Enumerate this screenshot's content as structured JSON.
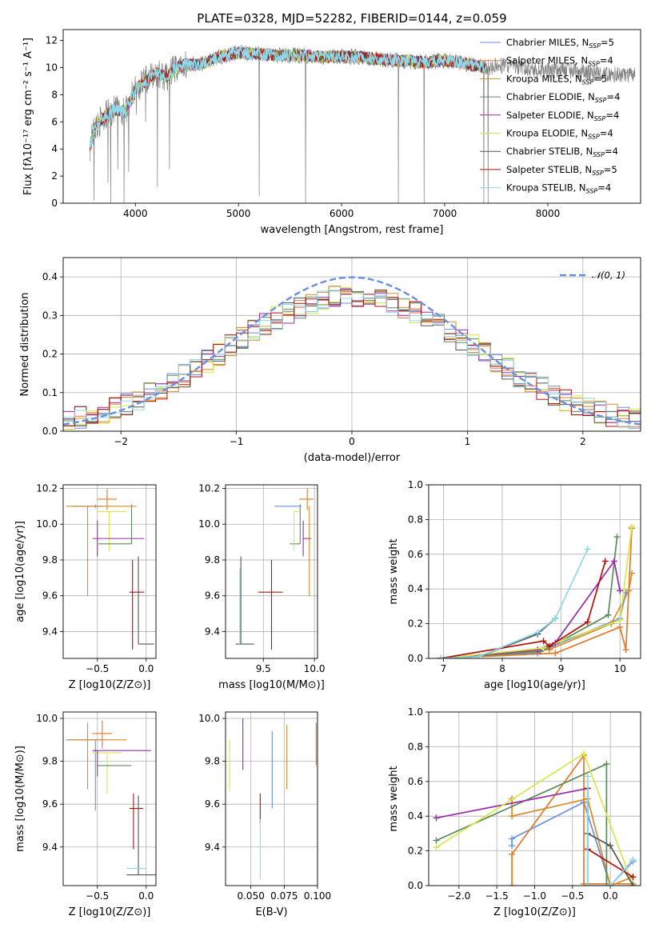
{
  "figure_title": "PLATE=0328, MJD=52282, FIBERID=0144, z=0.059",
  "colors": {
    "Chabrier MILES": "#6a8fe0",
    "Salpeter MILES": "#e07a2a",
    "Kroupa MILES": "#d98a2a",
    "Chabrier ELODIE": "#5a8a5a",
    "Salpeter ELODIE": "#9a2aa8",
    "Kroupa ELODIE": "#d6e84a",
    "Chabrier STELIB": "#555555",
    "Salpeter STELIB": "#b01010",
    "Kroupa STELIB": "#8fd8e8",
    "data": "#808080"
  },
  "chart_data": [
    {
      "id": "spectrum",
      "type": "line",
      "title": "PLATE=0328, MJD=52282, FIBERID=0144, z=0.059",
      "xlabel": "wavelength [Angstrom, rest frame]",
      "ylabel": "Flux [fλ10⁻¹⁷ erg cm⁻² s⁻¹ A⁻¹]",
      "xlim": [
        3300,
        8900
      ],
      "ylim": [
        0,
        12.8
      ],
      "xticks": [
        4000,
        5000,
        6000,
        7000,
        8000
      ],
      "yticks": [
        0,
        2,
        4,
        6,
        8,
        10,
        12
      ],
      "grid": false,
      "legend_position": "top-right",
      "legend": [
        "Chabrier MILES, N_SSP=5",
        "Salpeter MILES, N_SSP=4",
        "Kroupa MILES, N_SSP=5",
        "Chabrier ELODIE, N_SSP=4",
        "Salpeter ELODIE, N_SSP=4",
        "Kroupa ELODIE, N_SSP=4",
        "Chabrier STELIB, N_SSP=4",
        "Salpeter STELIB, N_SSP=5",
        "Kroupa STELIB, N_SSP=4"
      ],
      "legend_display": [
        [
          "Chabrier MILES, N",
          "SSP",
          "=5"
        ],
        [
          "Salpeter MILES, N",
          "SSP",
          "=4"
        ],
        [
          "Kroupa MILES, N",
          "SSP",
          "=5"
        ],
        [
          "Chabrier ELODIE, N",
          "SSP",
          "=4"
        ],
        [
          "Salpeter ELODIE, N",
          "SSP",
          "=4"
        ],
        [
          "Kroupa ELODIE, N",
          "SSP",
          "=4"
        ],
        [
          "Chabrier STELIB, N",
          "SSP",
          "=4"
        ],
        [
          "Salpeter STELIB, N",
          "SSP",
          "=5"
        ],
        [
          "Kroupa STELIB, N",
          "SSP",
          "=4"
        ]
      ],
      "continuum_x": [
        3560,
        3600,
        3700,
        3800,
        3900,
        4000,
        4100,
        4200,
        4300,
        4400,
        4500,
        4600,
        4700,
        4800,
        4900,
        5000,
        5200,
        5400,
        5600,
        5800,
        6000,
        6200,
        6400,
        6600,
        6800,
        7000,
        7200,
        7400,
        7600,
        7800,
        8000,
        8200,
        8400,
        8600,
        8800
      ],
      "continuum_y": [
        4.2,
        5.5,
        6.4,
        6.9,
        6.8,
        8.4,
        9.0,
        9.6,
        9.3,
        10.0,
        10.3,
        10.2,
        10.4,
        10.8,
        10.9,
        11.1,
        11.0,
        10.9,
        10.9,
        10.8,
        10.8,
        10.8,
        10.6,
        10.5,
        10.4,
        10.5,
        10.3,
        10.0,
        10.2,
        9.9,
        9.8,
        9.8,
        9.6,
        9.5,
        9.4
      ],
      "absorption_lines": [
        {
          "x": 3600,
          "y": 0.2
        },
        {
          "x": 3735,
          "y": 1.5
        },
        {
          "x": 3760,
          "y": 0.0
        },
        {
          "x": 3830,
          "y": 2.5
        },
        {
          "x": 3890,
          "y": 0.0
        },
        {
          "x": 3935,
          "y": 2.3
        },
        {
          "x": 4010,
          "y": 6.5
        },
        {
          "x": 4101,
          "y": 6.0
        },
        {
          "x": 4215,
          "y": 1.2
        },
        {
          "x": 4330,
          "y": 2.5
        },
        {
          "x": 5200,
          "y": 0.5
        },
        {
          "x": 5650,
          "y": 0.0
        },
        {
          "x": 6550,
          "y": 0.0
        },
        {
          "x": 6800,
          "y": 0.0
        },
        {
          "x": 7380,
          "y": 0.0
        },
        {
          "x": 7420,
          "y": 0.0
        }
      ]
    },
    {
      "id": "residuals",
      "type": "histogram",
      "xlabel": "(data-model)/error",
      "ylabel": "Normed distribution",
      "xlim": [
        -2.5,
        2.5
      ],
      "ylim": [
        0,
        0.45
      ],
      "xticks": [
        -2,
        -1,
        0,
        1,
        2
      ],
      "yticks": [
        0.0,
        0.1,
        0.2,
        0.3,
        0.4
      ],
      "grid": true,
      "legend_position": "top-right",
      "legend": [
        "𝒩(0, 1)"
      ],
      "bin_width": 0.1,
      "bin_start": -2.5,
      "bins": 50
    },
    {
      "id": "age-vs-Z",
      "type": "errorbar",
      "xlabel": "Z [log10(Z/Z⊙)]",
      "ylabel": "age [log10(age/yr)]",
      "xlim": [
        -0.85,
        0.1
      ],
      "ylim": [
        9.25,
        10.22
      ],
      "xticks": [
        -0.5,
        0.0
      ],
      "yticks": [
        9.4,
        9.6,
        9.8,
        10.0,
        10.2
      ],
      "grid": true,
      "points": [
        {
          "model": "Salpeter MILES",
          "x": -0.4,
          "y": 10.14,
          "xerr": [
            0.1,
            0.1
          ],
          "yerr": [
            0.06,
            0.06
          ]
        },
        {
          "model": "Chabrier MILES",
          "x": -0.52,
          "y": 10.1,
          "xerr": [
            0.23,
            0.08
          ],
          "yerr": [
            0.01,
            0.01
          ]
        },
        {
          "model": "Kroupa ELODIE",
          "x": -0.38,
          "y": 10.07,
          "xerr": [
            0.12,
            0.18
          ],
          "yerr": [
            0.22,
            0.0
          ]
        },
        {
          "model": "Salpeter ELODIE",
          "x": -0.5,
          "y": 9.92,
          "xerr": [
            0.05,
            0.48
          ],
          "yerr": [
            0.1,
            0.1
          ]
        },
        {
          "model": "Chabrier ELODIE",
          "x": -0.15,
          "y": 9.89,
          "xerr": [
            0.34,
            0.0
          ],
          "yerr": [
            0.0,
            0.22
          ]
        },
        {
          "model": "Salpeter STELIB",
          "x": -0.14,
          "y": 9.62,
          "xerr": [
            0.03,
            0.12
          ],
          "yerr": [
            0.32,
            0.18
          ]
        },
        {
          "model": "Chabrier STELIB",
          "x": -0.08,
          "y": 9.33,
          "xerr": [
            0.0,
            0.16
          ],
          "yerr": [
            0.0,
            0.49
          ]
        },
        {
          "model": "Kroupa MILES",
          "x": -0.6,
          "y": 10.1,
          "xerr": [
            0.22,
            0.5
          ],
          "yerr": [
            0.5,
            0.0
          ]
        }
      ]
    },
    {
      "id": "age-vs-mass",
      "type": "errorbar",
      "xlabel": "mass [log10(M/M⊙)]",
      "ylabel": "",
      "xlim": [
        9.13,
        10.03
      ],
      "ylim": [
        9.25,
        10.22
      ],
      "xticks": [
        9.5,
        10.0
      ],
      "yticks": [
        9.4,
        9.6,
        9.8,
        10.0,
        10.2
      ],
      "grid": true,
      "points": [
        {
          "model": "Salpeter MILES",
          "x": 9.93,
          "y": 10.14,
          "xerr": [
            0.08,
            0.06
          ],
          "yerr": [
            0.06,
            0.06
          ]
        },
        {
          "model": "Chabrier MILES",
          "x": 9.82,
          "y": 10.1,
          "xerr": [
            0.21,
            0.05
          ],
          "yerr": [
            0.0,
            0.0
          ]
        },
        {
          "model": "Chabrier ELODIE",
          "x": 9.86,
          "y": 9.89,
          "xerr": [
            0.1,
            0.0
          ],
          "yerr": [
            0.0,
            0.22
          ]
        },
        {
          "model": "Salpeter ELODIE",
          "x": 9.89,
          "y": 9.92,
          "xerr": [
            0.0,
            0.08
          ],
          "yerr": [
            0.1,
            0.1
          ]
        },
        {
          "model": "Kroupa ELODIE",
          "x": 9.8,
          "y": 10.07,
          "xerr": [
            0.0,
            0.05
          ],
          "yerr": [
            0.22,
            0.0
          ]
        },
        {
          "model": "Salpeter STELIB",
          "x": 9.58,
          "y": 9.62,
          "xerr": [
            0.13,
            0.11
          ],
          "yerr": [
            0.32,
            0.18
          ]
        },
        {
          "model": "Chabrier STELIB",
          "x": 9.28,
          "y": 9.33,
          "xerr": [
            0.05,
            0.13
          ],
          "yerr": [
            0.0,
            0.49
          ]
        },
        {
          "model": "Kroupa STELIB",
          "x": 9.27,
          "y": 9.33,
          "xerr": [
            0.0,
            0.0
          ],
          "yerr": [
            0.0,
            0.42
          ]
        },
        {
          "model": "Kroupa MILES",
          "x": 9.95,
          "y": 10.1,
          "xerr": [
            0.0,
            0.0
          ],
          "yerr": [
            0.5,
            0.0
          ]
        }
      ]
    },
    {
      "id": "mass-weight-vs-age",
      "type": "line",
      "xlabel": "age  [log10(age/yr)]",
      "ylabel": "mass weight",
      "xlim": [
        6.75,
        10.35
      ],
      "ylim": [
        0,
        1.0
      ],
      "xticks": [
        7,
        8,
        9,
        10
      ],
      "yticks": [
        0.0,
        0.2,
        0.4,
        0.6,
        0.8,
        1.0
      ],
      "grid": true,
      "series": [
        {
          "model": "Chabrier MILES",
          "x": [
            6.95,
            8.6,
            8.85,
            10.0,
            10.1
          ],
          "y": [
            0.0,
            0.03,
            0.07,
            0.23,
            0.38
          ]
        },
        {
          "model": "Salpeter MILES",
          "x": [
            6.95,
            8.9,
            10.0,
            10.1,
            10.2
          ],
          "y": [
            0.0,
            0.03,
            0.18,
            0.05,
            0.75
          ]
        },
        {
          "model": "Kroupa MILES",
          "x": [
            6.95,
            8.8,
            9.85,
            10.15,
            10.2
          ],
          "y": [
            0.0,
            0.05,
            0.2,
            0.39,
            0.49
          ]
        },
        {
          "model": "Chabrier ELODIE",
          "x": [
            6.95,
            8.65,
            9.0,
            9.8,
            9.95
          ],
          "y": [
            0.0,
            0.04,
            0.1,
            0.25,
            0.7
          ]
        },
        {
          "model": "Salpeter ELODIE",
          "x": [
            6.95,
            8.6,
            8.9,
            9.9,
            10.0
          ],
          "y": [
            0.0,
            0.05,
            0.09,
            0.56,
            0.39
          ]
        },
        {
          "model": "Kroupa ELODIE",
          "x": [
            6.95,
            8.7,
            9.0,
            10.0,
            10.2
          ],
          "y": [
            0.0,
            0.06,
            0.1,
            0.22,
            0.76
          ]
        },
        {
          "model": "Chabrier STELIB",
          "x": [
            6.95,
            7.6,
            8.6,
            8.9
          ],
          "y": [
            0.0,
            0.01,
            0.14,
            0.23
          ]
        },
        {
          "model": "Salpeter STELIB",
          "x": [
            6.95,
            8.7,
            8.8,
            9.45,
            9.75
          ],
          "y": [
            0.0,
            0.1,
            0.07,
            0.21,
            0.56
          ]
        },
        {
          "model": "Kroupa STELIB",
          "x": [
            6.95,
            7.6,
            8.6,
            8.9,
            9.45
          ],
          "y": [
            0.0,
            0.01,
            0.15,
            0.23,
            0.63
          ]
        }
      ]
    },
    {
      "id": "mass-vs-Z",
      "type": "errorbar",
      "xlabel": "Z [log10(Z/Z⊙)]",
      "ylabel": "mass [log10(M/M⊙)]",
      "xlim": [
        -0.85,
        0.1
      ],
      "ylim": [
        9.22,
        10.03
      ],
      "xticks": [
        -0.5,
        0.0
      ],
      "yticks": [
        9.4,
        9.6,
        9.8,
        10.0
      ],
      "grid": true,
      "points": [
        {
          "model": "Salpeter MILES",
          "x": -0.45,
          "y": 9.93,
          "xerr": [
            0.1,
            0.1
          ],
          "yerr": [
            0.07,
            0.06
          ]
        },
        {
          "model": "Chabrier MILES",
          "x": -0.52,
          "y": 9.9,
          "xerr": [
            0.3,
            0.1
          ],
          "yerr": [
            0.33,
            0.0
          ]
        },
        {
          "model": "Kroupa ELODIE",
          "x": -0.4,
          "y": 9.84,
          "xerr": [
            0.15,
            0.15
          ],
          "yerr": [
            0.19,
            0.0
          ]
        },
        {
          "model": "Salpeter ELODIE",
          "x": -0.5,
          "y": 9.85,
          "xerr": [
            0.05,
            0.55
          ],
          "yerr": [
            0.12,
            0.0
          ]
        },
        {
          "model": "Chabrier ELODIE",
          "x": -0.15,
          "y": 9.78,
          "xerr": [
            0.35,
            0.0
          ],
          "yerr": [
            0.0,
            0.0
          ]
        },
        {
          "model": "Salpeter STELIB",
          "x": -0.13,
          "y": 9.58,
          "xerr": [
            0.04,
            0.1
          ],
          "yerr": [
            0.19,
            0.07
          ]
        },
        {
          "model": "Chabrier STELIB",
          "x": -0.08,
          "y": 9.27,
          "xerr": [
            0.12,
            0.18
          ],
          "yerr": [
            0.0,
            0.37
          ]
        },
        {
          "model": "Kroupa STELIB",
          "x": -0.1,
          "y": 9.3,
          "xerr": [
            0.1,
            0.1
          ],
          "yerr": [
            0.0,
            0.0
          ]
        },
        {
          "model": "Kroupa MILES",
          "x": -0.6,
          "y": 9.9,
          "xerr": [
            0.2,
            0.4
          ],
          "yerr": [
            0.23,
            0.08
          ]
        }
      ]
    },
    {
      "id": "mass-vs-EBV",
      "type": "errorbar",
      "xlabel": "E(B-V)",
      "ylabel": "",
      "xlim": [
        0.031,
        0.1
      ],
      "ylim": [
        9.22,
        10.03
      ],
      "xticks": [
        0.05,
        0.075,
        0.1
      ],
      "xticklabels": [
        "0.050",
        "0.075",
        "0.100"
      ],
      "yticks": [
        9.4,
        9.6,
        9.8,
        10.0
      ],
      "grid": true,
      "points": [
        {
          "model": "Kroupa ELODIE",
          "x": 0.034,
          "y": 9.78,
          "yerr": [
            0.12,
            0.12
          ]
        },
        {
          "model": "Salpeter ELODIE",
          "x": 0.044,
          "y": 9.88,
          "yerr": [
            0.12,
            0.12
          ]
        },
        {
          "model": "Salpeter STELIB",
          "x": 0.057,
          "y": 9.58,
          "yerr": [
            0.07,
            0.07
          ]
        },
        {
          "model": "Kroupa STELIB",
          "x": 0.057,
          "y": 9.39,
          "yerr": [
            0.14,
            0.14
          ]
        },
        {
          "model": "Chabrier MILES",
          "x": 0.066,
          "y": 9.76,
          "yerr": [
            0.18,
            0.18
          ]
        },
        {
          "model": "Kroupa MILES",
          "x": 0.077,
          "y": 9.82,
          "yerr": [
            0.15,
            0.15
          ]
        },
        {
          "model": "Salpeter MILES",
          "x": 0.099,
          "y": 9.88,
          "yerr": [
            0.1,
            0.1
          ]
        }
      ]
    },
    {
      "id": "mass-weight-vs-Z",
      "type": "line",
      "xlabel": "Z [log10(Z/Z⊙)]",
      "ylabel": "mass weight",
      "xlim": [
        -2.4,
        0.4
      ],
      "ylim": [
        0,
        1.0
      ],
      "xticks": [
        -2.0,
        -1.5,
        -1.0,
        -0.5,
        0.0
      ],
      "yticks": [
        0.0,
        0.2,
        0.4,
        0.6,
        0.8,
        1.0
      ],
      "grid": true,
      "series": [
        {
          "model": "Chabrier MILES",
          "x": [
            -1.3,
            -1.3,
            -0.35,
            0.0,
            0.3
          ],
          "y": [
            0.23,
            0.27,
            0.48,
            0.0,
            0.14
          ]
        },
        {
          "model": "Salpeter MILES",
          "x": [
            -1.3,
            -1.3,
            -0.35,
            -0.35,
            0.3
          ],
          "y": [
            0.0,
            0.18,
            0.75,
            0.01,
            0.01
          ]
        },
        {
          "model": "Kroupa MILES",
          "x": [
            -1.3,
            -1.3,
            -0.3,
            0.0,
            0.3
          ],
          "y": [
            0.5,
            0.4,
            0.5,
            0.0,
            0.05
          ]
        },
        {
          "model": "Chabrier ELODIE",
          "x": [
            -2.3,
            -0.05,
            -0.05
          ],
          "y": [
            0.26,
            0.7,
            0.0
          ]
        },
        {
          "model": "Salpeter ELODIE",
          "x": [
            -2.3,
            -0.3,
            -0.3
          ],
          "y": [
            0.39,
            0.56,
            0.0
          ]
        },
        {
          "model": "Kroupa ELODIE",
          "x": [
            -2.3,
            -0.35,
            0.3
          ],
          "y": [
            0.22,
            0.76,
            0.0
          ]
        },
        {
          "model": "Chabrier STELIB",
          "x": [
            -0.3,
            0.0,
            0.3
          ],
          "y": [
            0.3,
            0.23,
            0.0
          ]
        },
        {
          "model": "Salpeter STELIB",
          "x": [
            -0.3,
            -0.3,
            0.3
          ],
          "y": [
            0.56,
            0.21,
            0.05
          ]
        },
        {
          "model": "Kroupa STELIB",
          "x": [
            -0.3,
            -0.3,
            0.0,
            0.3
          ],
          "y": [
            0.63,
            0.0,
            0.0,
            0.15
          ]
        }
      ]
    }
  ]
}
